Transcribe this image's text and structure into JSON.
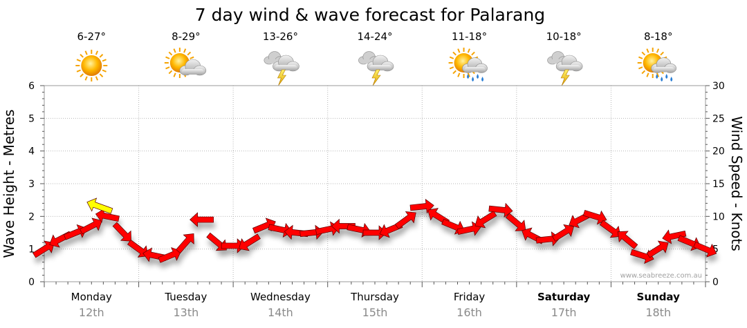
{
  "chart_data": {
    "type": "line",
    "title": "7 day wind & wave forecast for Palarang",
    "ylabel": "Wave Height - Metres",
    "y2label": "Wind Speed - Knots",
    "ylim": [
      0,
      6
    ],
    "y2lim": [
      0,
      30
    ],
    "yticks": [
      "0",
      "1",
      "2",
      "3",
      "4",
      "5",
      "6"
    ],
    "y2ticks": [
      "0",
      "5",
      "10",
      "15",
      "20",
      "25",
      "30"
    ],
    "credit": "www.seabreeze.com.au",
    "grid": true,
    "days": [
      {
        "name": "Monday",
        "date": "12th",
        "temp": "6-27°",
        "icon": "sunny-icon",
        "bold": false
      },
      {
        "name": "Tuesday",
        "date": "13th",
        "temp": "8-29°",
        "icon": "partly-cloudy-icon",
        "bold": false
      },
      {
        "name": "Wednesday",
        "date": "14th",
        "temp": "13-26°",
        "icon": "thunderstorm-icon",
        "bold": false
      },
      {
        "name": "Thursday",
        "date": "15th",
        "temp": "14-24°",
        "icon": "thunderstorm-icon",
        "bold": false
      },
      {
        "name": "Friday",
        "date": "16th",
        "temp": "11-18°",
        "icon": "sun-shower-icon",
        "bold": false
      },
      {
        "name": "Saturday",
        "date": "17th",
        "temp": "10-18°",
        "icon": "thunderstorm-icon",
        "bold": true
      },
      {
        "name": "Sunday",
        "date": "18th",
        "temp": "8-18°",
        "icon": "sun-shower-icon",
        "bold": true
      }
    ],
    "wind_series": {
      "name": "Wind Speed",
      "color": "#ff0000",
      "x_hours": [
        0,
        4,
        8,
        12,
        16,
        20,
        24,
        28,
        32,
        36,
        40,
        44,
        48,
        52,
        56,
        60,
        64,
        68,
        72,
        76,
        80,
        84,
        88,
        92,
        96,
        100,
        104,
        108,
        112,
        116,
        120,
        124,
        128,
        132,
        136,
        140,
        144,
        148,
        152,
        156,
        160,
        164,
        168
      ],
      "values": [
        5,
        6.5,
        7.5,
        8.5,
        10,
        7.5,
        5,
        4,
        4,
        6,
        9.5,
        6,
        5.5,
        6,
        8.5,
        8,
        7.5,
        7.5,
        8,
        8.5,
        8,
        7.5,
        8,
        9.5,
        11.5,
        10,
        8.5,
        8,
        9.5,
        11,
        9,
        7,
        6.5,
        7.5,
        9.5,
        10,
        8,
        6.5,
        4,
        5,
        7,
        6,
        5
      ]
    },
    "swell_marker": {
      "name": "Swell",
      "color": "#ffff00",
      "x_hours": 14,
      "value": 2.3
    }
  }
}
